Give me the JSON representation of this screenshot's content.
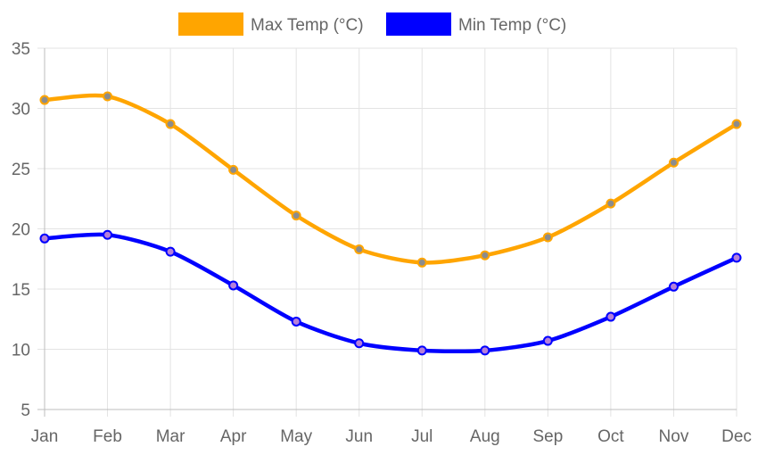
{
  "chart_data": {
    "type": "line",
    "categories": [
      "Jan",
      "Feb",
      "Mar",
      "Apr",
      "May",
      "Jun",
      "Jul",
      "Aug",
      "Sep",
      "Oct",
      "Nov",
      "Dec"
    ],
    "series": [
      {
        "name": "Max Temp (°C)",
        "color": "#ffa500",
        "point_color": "#8c8c8c",
        "values": [
          30.7,
          31.0,
          28.7,
          24.9,
          21.1,
          18.3,
          17.2,
          17.8,
          19.3,
          22.1,
          25.5,
          28.7
        ]
      },
      {
        "name": "Min Temp (°C)",
        "color": "#0000ff",
        "point_color": "#b57fd9",
        "values": [
          19.2,
          19.5,
          18.1,
          15.3,
          12.3,
          10.5,
          9.9,
          9.9,
          10.7,
          12.7,
          15.2,
          17.6
        ]
      }
    ],
    "ylim": [
      5,
      35
    ],
    "yticks": [
      5,
      10,
      15,
      20,
      25,
      30,
      35
    ],
    "grid": true,
    "legend_position": "top-center"
  }
}
